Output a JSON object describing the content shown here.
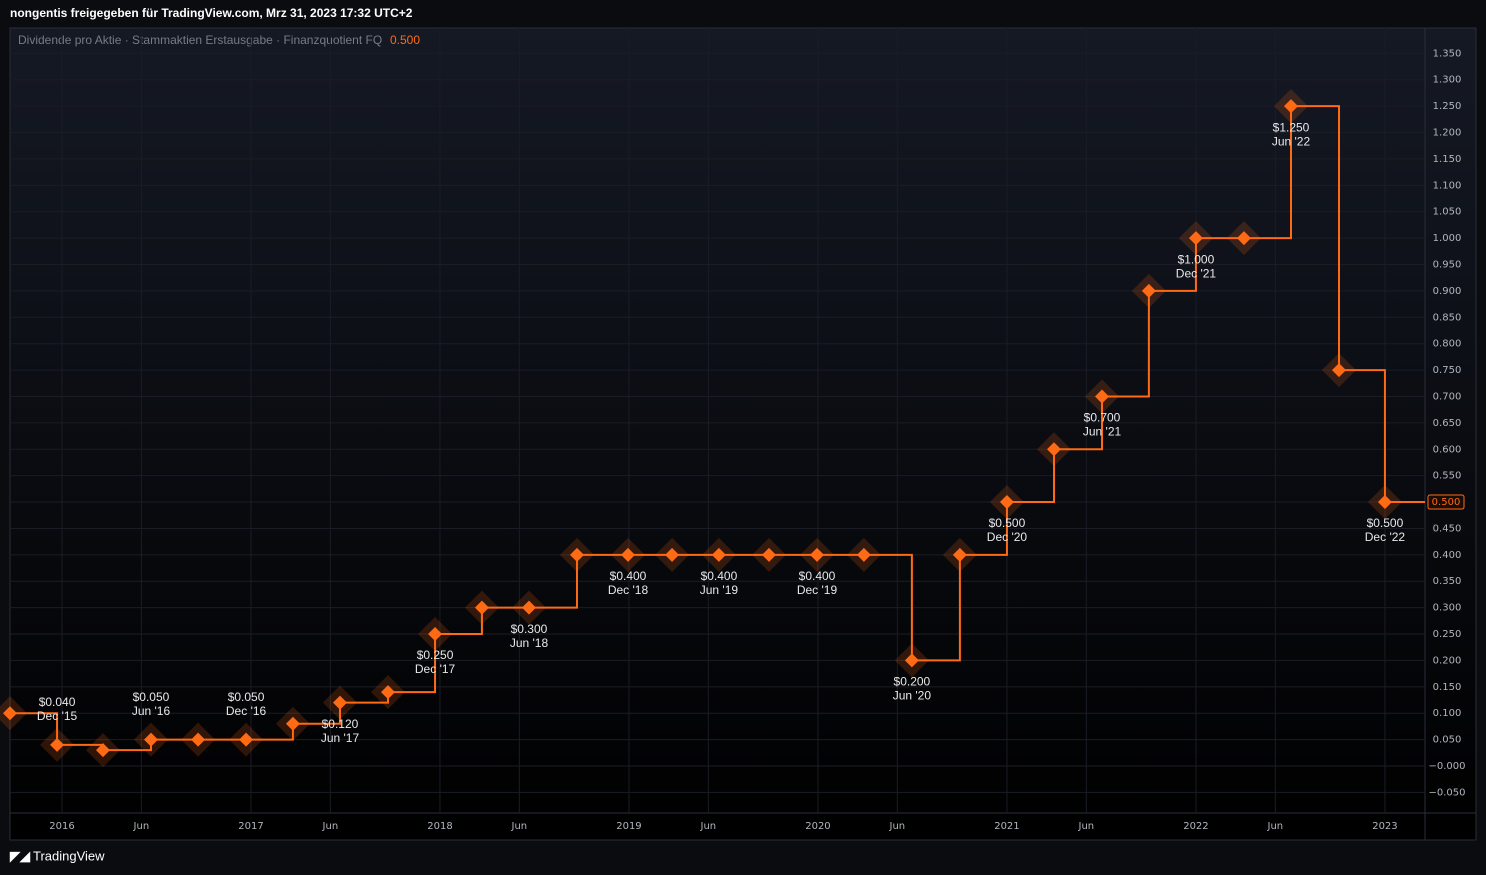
{
  "header": "nongentis freigegeben für TradingView.com, Mrz 31, 2023 17:32 UTC+2",
  "footer": "TradingView",
  "chart_data": {
    "type": "step",
    "title": "Dividende pro Aktie · Stammaktien Erstausgabe · Finanzquotient FQ",
    "last_label": "0.500",
    "series": [
      {
        "name": null,
        "color": "#ff6a14",
        "x": [
          2015.725,
          2015.974,
          2016.217,
          2016.471,
          2016.72,
          2016.974,
          2017.222,
          2017.471,
          2017.725,
          2017.974,
          2018.222,
          2018.471,
          2018.725,
          2018.995,
          2019.228,
          2019.476,
          2019.741,
          2019.995,
          2020.243,
          2020.497,
          2020.751,
          2021.0,
          2021.249,
          2021.503,
          2021.751,
          2022.0,
          2022.254,
          2022.503,
          2022.757,
          2023.0
        ],
        "values": [
          0.1,
          0.04,
          0.03,
          0.05,
          0.05,
          0.05,
          0.08,
          0.12,
          0.14,
          0.25,
          0.3,
          0.3,
          0.4,
          0.4,
          0.4,
          0.4,
          0.4,
          0.4,
          0.4,
          0.2,
          0.4,
          0.5,
          0.6,
          0.7,
          0.9,
          1.0,
          1.0,
          1.25,
          0.75,
          0.5
        ],
        "value_labels": [
          null,
          "$0.040",
          null,
          "$0.050",
          null,
          "$0.050",
          null,
          "$0.120",
          null,
          "$0.250",
          null,
          "$0.300",
          null,
          "$0.400",
          null,
          "$0.400",
          null,
          "$0.400",
          null,
          "$0.200",
          null,
          "$0.500",
          null,
          "$0.700",
          null,
          "$1.000",
          null,
          "$1.250",
          null,
          "$0.500"
        ],
        "categories": [
          null,
          "Dec '15",
          null,
          "Jun '16",
          null,
          "Dec '16",
          null,
          "Jun '17",
          null,
          "Dec '17",
          null,
          "Jun '18",
          null,
          "Dec '18",
          null,
          "Jun '19",
          null,
          "Dec '19",
          null,
          "Jun '20",
          null,
          "Dec '20",
          null,
          "Jun '21",
          null,
          "Dec '21",
          null,
          "Jun '22",
          null,
          "Dec '22"
        ]
      }
    ],
    "xlim": [
      2015.725,
      2023.212
    ],
    "xticks": [
      {
        "value": 2016,
        "label": "2016"
      },
      {
        "value": 2016.42,
        "label": "Jun"
      },
      {
        "value": 2017,
        "label": "2017"
      },
      {
        "value": 2017.42,
        "label": "Jun"
      },
      {
        "value": 2018,
        "label": "2018"
      },
      {
        "value": 2018.42,
        "label": "Jun"
      },
      {
        "value": 2019,
        "label": "2019"
      },
      {
        "value": 2019.42,
        "label": "Jun"
      },
      {
        "value": 2020,
        "label": "2020"
      },
      {
        "value": 2020.42,
        "label": "Jun"
      },
      {
        "value": 2021,
        "label": "2021"
      },
      {
        "value": 2021.42,
        "label": "Jun"
      },
      {
        "value": 2022,
        "label": "2022"
      },
      {
        "value": 2022.42,
        "label": "Jun"
      },
      {
        "value": 2023,
        "label": "2023"
      }
    ],
    "ylim": [
      -0.089,
      1.398
    ],
    "yticks": [
      {
        "value": 1.35,
        "label": "1.350"
      },
      {
        "value": 1.3,
        "label": "1.300"
      },
      {
        "value": 1.25,
        "label": "1.250"
      },
      {
        "value": 1.2,
        "label": "1.200"
      },
      {
        "value": 1.15,
        "label": "1.150"
      },
      {
        "value": 1.1,
        "label": "1.100"
      },
      {
        "value": 1.05,
        "label": "1.050"
      },
      {
        "value": 1.0,
        "label": "1.000"
      },
      {
        "value": 0.95,
        "label": "0.950"
      },
      {
        "value": 0.9,
        "label": "0.900"
      },
      {
        "value": 0.85,
        "label": "0.850"
      },
      {
        "value": 0.8,
        "label": "0.800"
      },
      {
        "value": 0.75,
        "label": "0.750"
      },
      {
        "value": 0.7,
        "label": "0.700"
      },
      {
        "value": 0.65,
        "label": "0.650"
      },
      {
        "value": 0.6,
        "label": "0.600"
      },
      {
        "value": 0.55,
        "label": "0.550"
      },
      {
        "value": 0.5,
        "label": "0.500"
      },
      {
        "value": 0.45,
        "label": "0.450"
      },
      {
        "value": 0.4,
        "label": "0.400"
      },
      {
        "value": 0.35,
        "label": "0.350"
      },
      {
        "value": 0.3,
        "label": "0.300"
      },
      {
        "value": 0.25,
        "label": "0.250"
      },
      {
        "value": 0.2,
        "label": "0.200"
      },
      {
        "value": 0.15,
        "label": "0.150"
      },
      {
        "value": 0.1,
        "label": "0.100"
      },
      {
        "value": 0.05,
        "label": "0.050"
      },
      {
        "value": 0,
        "label": "−0.000"
      },
      {
        "value": -0.05,
        "label": "−0.050"
      }
    ],
    "grid": true
  }
}
